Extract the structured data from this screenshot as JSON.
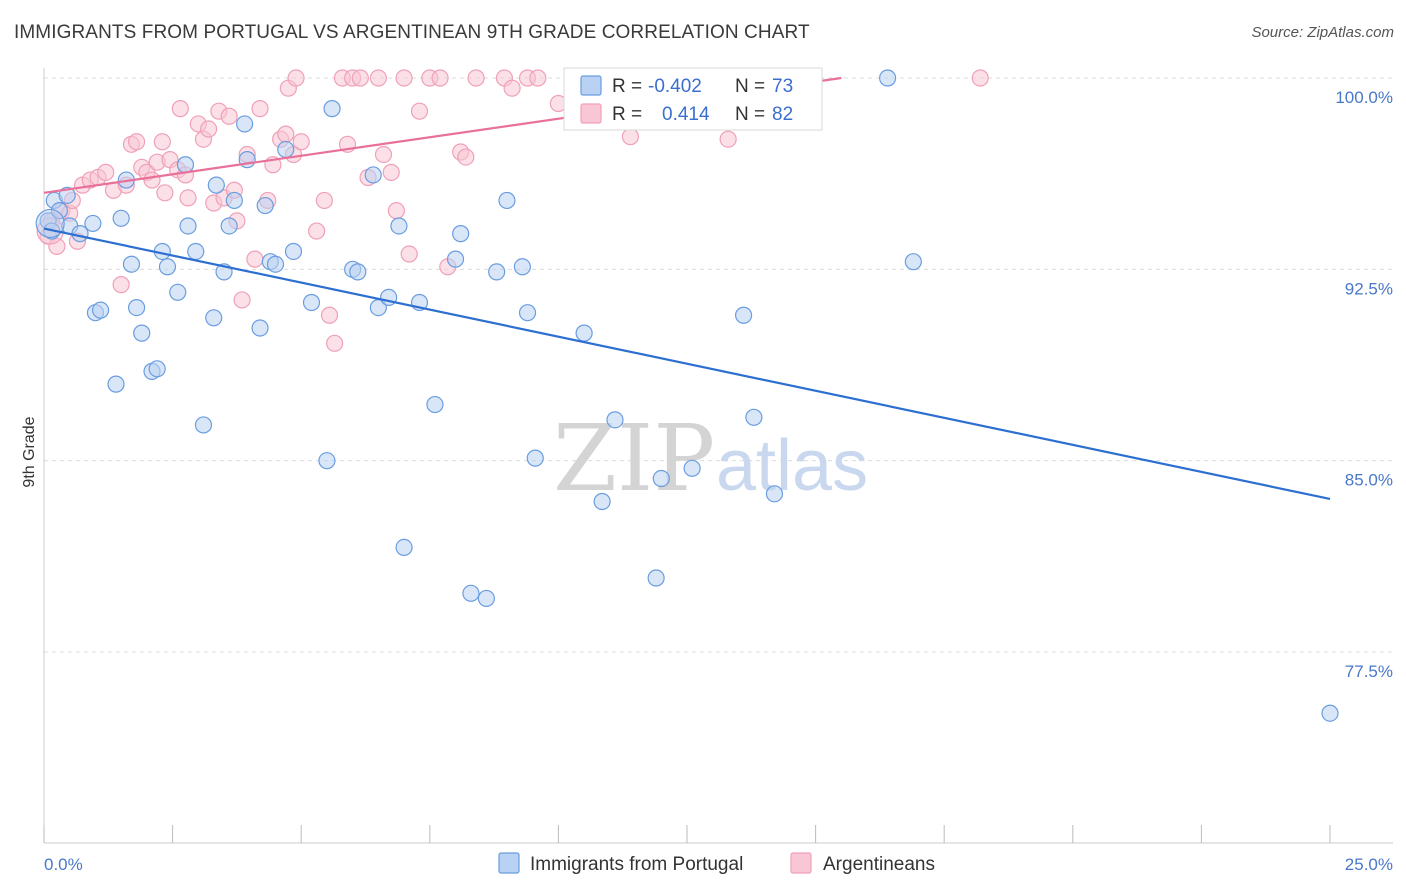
{
  "title": "IMMIGRANTS FROM PORTUGAL VS ARGENTINEAN 9TH GRADE CORRELATION CHART",
  "source": "Source: ZipAtlas.com",
  "watermark": {
    "zip": "ZIP",
    "atlas": "atlas"
  },
  "colors": {
    "blue": "#6a9de0",
    "blue_fill": "#b9d1f2",
    "blue_line": "#2d6fd1",
    "pink": "#f0a0b8",
    "pink_fill": "#f8c6d4",
    "pink_line": "#e8709a"
  },
  "legend": {
    "r_label": "R =",
    "n_label": "N =",
    "blue": {
      "r": "-0.402",
      "n": "73"
    },
    "pink": {
      "r": "0.414",
      "n": "82"
    }
  },
  "chart_data": {
    "type": "scatter",
    "xlabel": "",
    "ylabel": "9th Grade",
    "xlim": [
      0,
      25
    ],
    "ylim": [
      71.3,
      100.4
    ],
    "x_tick_labels": [
      "0.0%",
      "25.0%"
    ],
    "y_ticks": [
      {
        "value": 100.0,
        "label": "100.0%"
      },
      {
        "value": 92.5,
        "label": "92.5%"
      },
      {
        "value": 85.0,
        "label": "85.0%"
      },
      {
        "value": 77.5,
        "label": "77.5%"
      }
    ],
    "grid": true,
    "legend_position": "top-center",
    "series": [
      {
        "name": "Immigrants from Portugal",
        "color": "#6a9de0",
        "trend": {
          "x": [
            0,
            25
          ],
          "y": [
            94.1,
            83.5
          ]
        },
        "points": [
          [
            0.08,
            94.4
          ],
          [
            0.15,
            94.0
          ],
          [
            0.2,
            95.2
          ],
          [
            0.3,
            94.8
          ],
          [
            0.45,
            95.4
          ],
          [
            0.5,
            94.2
          ],
          [
            0.7,
            93.9
          ],
          [
            0.95,
            94.3
          ],
          [
            1.0,
            90.8
          ],
          [
            1.1,
            90.9
          ],
          [
            1.4,
            88.0
          ],
          [
            1.5,
            94.5
          ],
          [
            1.6,
            96.0
          ],
          [
            1.7,
            92.7
          ],
          [
            1.8,
            91.0
          ],
          [
            1.9,
            90.0
          ],
          [
            2.1,
            88.5
          ],
          [
            2.2,
            88.6
          ],
          [
            2.3,
            93.2
          ],
          [
            2.4,
            92.6
          ],
          [
            2.6,
            91.6
          ],
          [
            2.75,
            96.6
          ],
          [
            2.8,
            94.2
          ],
          [
            2.95,
            93.2
          ],
          [
            3.1,
            86.4
          ],
          [
            3.3,
            90.6
          ],
          [
            3.35,
            95.8
          ],
          [
            3.5,
            92.4
          ],
          [
            3.6,
            94.2
          ],
          [
            3.7,
            95.2
          ],
          [
            3.9,
            98.2
          ],
          [
            3.95,
            96.8
          ],
          [
            4.2,
            90.2
          ],
          [
            4.3,
            95.0
          ],
          [
            4.4,
            92.8
          ],
          [
            4.5,
            92.7
          ],
          [
            4.7,
            97.2
          ],
          [
            4.85,
            93.2
          ],
          [
            5.2,
            91.2
          ],
          [
            5.5,
            85.0
          ],
          [
            5.6,
            98.8
          ],
          [
            6.0,
            92.5
          ],
          [
            6.1,
            92.4
          ],
          [
            6.4,
            96.2
          ],
          [
            6.5,
            91.0
          ],
          [
            6.7,
            91.4
          ],
          [
            6.9,
            94.2
          ],
          [
            7.0,
            81.6
          ],
          [
            7.3,
            91.2
          ],
          [
            7.6,
            87.2
          ],
          [
            8.0,
            92.9
          ],
          [
            8.1,
            93.9
          ],
          [
            8.3,
            79.8
          ],
          [
            8.6,
            79.6
          ],
          [
            8.8,
            92.4
          ],
          [
            9.0,
            95.2
          ],
          [
            9.3,
            92.6
          ],
          [
            9.4,
            90.8
          ],
          [
            9.55,
            85.1
          ],
          [
            10.5,
            90.0
          ],
          [
            10.85,
            83.4
          ],
          [
            11.0,
            100.0
          ],
          [
            11.1,
            86.6
          ],
          [
            11.9,
            80.4
          ],
          [
            12.0,
            84.3
          ],
          [
            12.6,
            84.7
          ],
          [
            13.6,
            90.7
          ],
          [
            13.8,
            86.7
          ],
          [
            14.2,
            83.7
          ],
          [
            14.7,
            100.0
          ],
          [
            16.4,
            100.0
          ],
          [
            16.9,
            92.8
          ],
          [
            25.0,
            75.1
          ]
        ]
      },
      {
        "name": "Argentineans",
        "color": "#f0a0b8",
        "trend": {
          "x": [
            0,
            15.5
          ],
          "y": [
            95.5,
            100.0
          ]
        },
        "points": [
          [
            0.08,
            93.8
          ],
          [
            0.15,
            94.4
          ],
          [
            0.25,
            93.4
          ],
          [
            0.35,
            94.8
          ],
          [
            0.5,
            94.7
          ],
          [
            0.55,
            95.2
          ],
          [
            0.65,
            93.6
          ],
          [
            0.75,
            95.8
          ],
          [
            0.9,
            96.0
          ],
          [
            1.05,
            96.1
          ],
          [
            1.2,
            96.3
          ],
          [
            1.35,
            95.6
          ],
          [
            1.5,
            91.9
          ],
          [
            1.6,
            95.8
          ],
          [
            1.7,
            97.4
          ],
          [
            1.8,
            97.5
          ],
          [
            1.9,
            96.5
          ],
          [
            2.0,
            96.3
          ],
          [
            2.1,
            96.0
          ],
          [
            2.2,
            96.7
          ],
          [
            2.3,
            97.5
          ],
          [
            2.35,
            95.5
          ],
          [
            2.45,
            96.8
          ],
          [
            2.6,
            96.4
          ],
          [
            2.65,
            98.8
          ],
          [
            2.75,
            96.2
          ],
          [
            2.8,
            95.3
          ],
          [
            3.0,
            98.2
          ],
          [
            3.1,
            97.6
          ],
          [
            3.2,
            98.0
          ],
          [
            3.3,
            95.1
          ],
          [
            3.4,
            98.7
          ],
          [
            3.5,
            95.3
          ],
          [
            3.6,
            98.5
          ],
          [
            3.7,
            95.6
          ],
          [
            3.75,
            94.4
          ],
          [
            3.85,
            91.3
          ],
          [
            3.95,
            97.0
          ],
          [
            4.1,
            92.9
          ],
          [
            4.2,
            98.8
          ],
          [
            4.35,
            95.2
          ],
          [
            4.45,
            96.6
          ],
          [
            4.6,
            97.6
          ],
          [
            4.7,
            97.8
          ],
          [
            4.75,
            99.6
          ],
          [
            4.85,
            97.0
          ],
          [
            4.9,
            100.0
          ],
          [
            5.0,
            97.5
          ],
          [
            5.3,
            94.0
          ],
          [
            5.45,
            95.2
          ],
          [
            5.55,
            90.7
          ],
          [
            5.65,
            89.6
          ],
          [
            5.8,
            100.0
          ],
          [
            5.9,
            97.4
          ],
          [
            6.0,
            100.0
          ],
          [
            6.15,
            100.0
          ],
          [
            6.3,
            96.1
          ],
          [
            6.5,
            100.0
          ],
          [
            6.6,
            97.0
          ],
          [
            6.75,
            96.3
          ],
          [
            6.85,
            94.8
          ],
          [
            7.0,
            100.0
          ],
          [
            7.1,
            93.1
          ],
          [
            7.3,
            98.7
          ],
          [
            7.5,
            100.0
          ],
          [
            7.7,
            100.0
          ],
          [
            7.85,
            92.6
          ],
          [
            8.1,
            97.1
          ],
          [
            8.2,
            96.9
          ],
          [
            8.4,
            100.0
          ],
          [
            8.95,
            100.0
          ],
          [
            9.1,
            99.6
          ],
          [
            9.4,
            100.0
          ],
          [
            9.6,
            100.0
          ],
          [
            10.0,
            99.0
          ],
          [
            10.3,
            100.0
          ],
          [
            10.5,
            98.9
          ],
          [
            11.4,
            97.7
          ],
          [
            12.6,
            100.0
          ],
          [
            12.8,
            98.8
          ],
          [
            13.3,
            97.6
          ],
          [
            18.2,
            100.0
          ]
        ]
      }
    ]
  }
}
